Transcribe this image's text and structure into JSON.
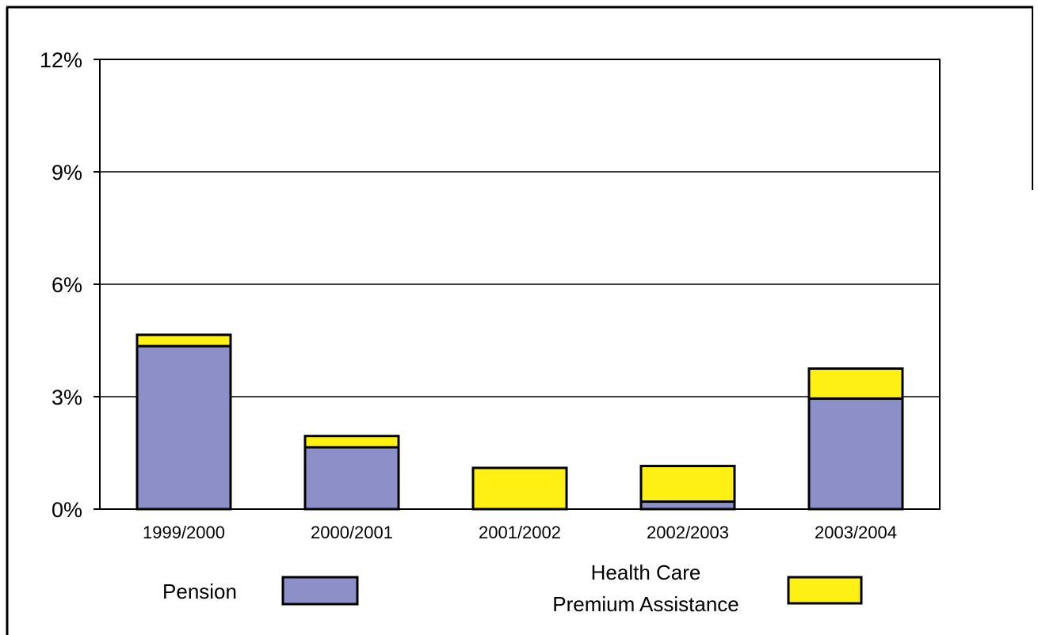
{
  "chart_data": {
    "type": "bar",
    "stacked": true,
    "categories": [
      "1999/2000",
      "2000/2001",
      "2001/2002",
      "2002/2003",
      "2003/2004"
    ],
    "series": [
      {
        "name": "Pension",
        "color": "#8C8FC8",
        "values": [
          4.35,
          1.65,
          0.0,
          0.2,
          2.95
        ]
      },
      {
        "name": "Health Care Premium Assistance",
        "color": "#FFF014",
        "values": [
          0.3,
          0.3,
          1.1,
          0.95,
          0.8
        ]
      }
    ],
    "ylim": [
      0,
      12
    ],
    "yticks": [
      0,
      3,
      6,
      9,
      12
    ],
    "ytick_labels": [
      "0%",
      "3%",
      "6%",
      "9%",
      "12%"
    ],
    "grid": true,
    "legend": {
      "placement": "bottom",
      "entries": [
        {
          "lines": [
            "Pension"
          ],
          "color": "#8C8FC8"
        },
        {
          "lines": [
            "Health Care",
            "Premium Assistance"
          ],
          "color": "#FFF014"
        }
      ]
    }
  }
}
